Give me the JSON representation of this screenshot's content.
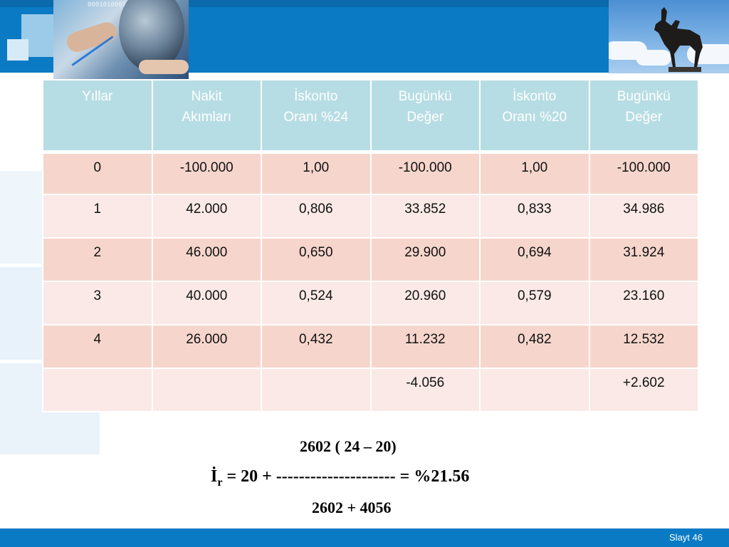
{
  "header": {
    "binary_text": "0001010001001-001100"
  },
  "table": {
    "headers": [
      [
        "Yıllar",
        ""
      ],
      [
        "Nakit",
        "Akımları"
      ],
      [
        "İskonto",
        "Oranı %24"
      ],
      [
        "Bugünkü",
        "Değer"
      ],
      [
        "İskonto",
        "Oranı %20"
      ],
      [
        "Bugünkü",
        "Değer"
      ]
    ],
    "rows": [
      [
        "0",
        "-100.000",
        "1,00",
        "-100.000",
        "1,00",
        "-100.000"
      ],
      [
        "1",
        "42.000",
        "0,806",
        "33.852",
        "0,833",
        "34.986"
      ],
      [
        "2",
        "46.000",
        "0,650",
        "29.900",
        "0,694",
        "31.924"
      ],
      [
        "3",
        "40.000",
        "0,524",
        "20.960",
        "0,579",
        "23.160"
      ],
      [
        "4",
        "26.000",
        "0,432",
        "11.232",
        "0,482",
        "12.532"
      ],
      [
        "",
        "",
        "",
        "-4.056",
        "",
        "+2.602"
      ]
    ]
  },
  "formula": {
    "numerator": "2602 ( 24 – 20)",
    "lhs": "İ",
    "lhs_sub": "r",
    "rhs": " = 20 + --------------------- = %21.56",
    "denominator": "2602 + 4056"
  },
  "footer": {
    "slide_label": "Slayt 46"
  },
  "colors": {
    "band_blue": "#0a7ac4",
    "header_cell": "#b7dde4",
    "row_odd": "#f6d6cc",
    "row_even": "#fae9e6"
  }
}
